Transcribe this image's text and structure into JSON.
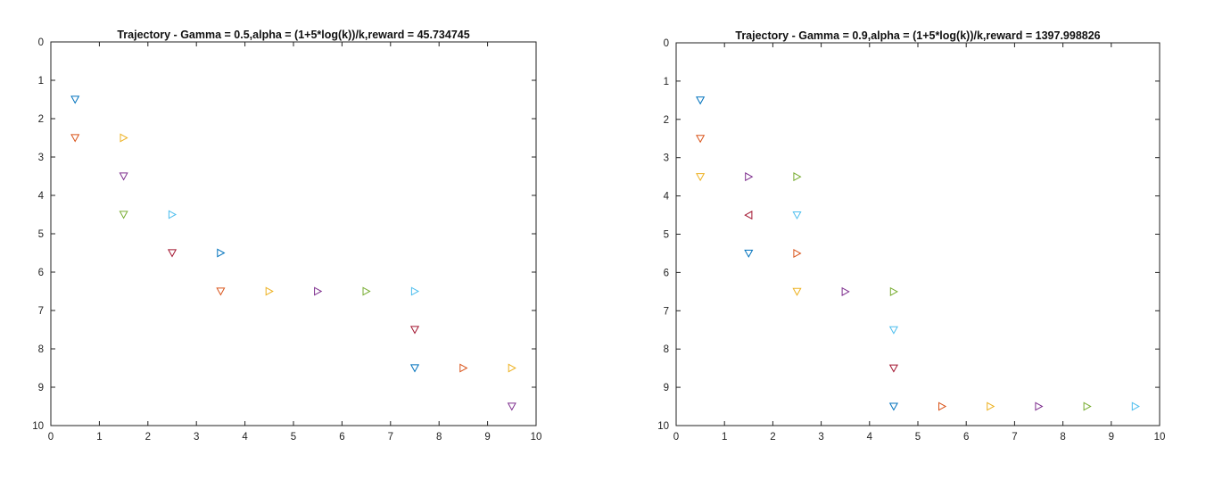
{
  "figure": {
    "panels": [
      "left-panel",
      "right-panel"
    ]
  },
  "palette": [
    "#0072BD",
    "#D95319",
    "#EDB120",
    "#7E2F8E",
    "#77AC30",
    "#4DBEEE",
    "#A2142F"
  ],
  "chart_data": [
    {
      "type": "scatter",
      "title": "Trajectory - Gamma = 0.5,alpha = (1+5*log(k))/k,reward = 45.734745",
      "xlabel": "",
      "ylabel": "",
      "xlim": [
        0,
        10
      ],
      "ylim": [
        0,
        10
      ],
      "y_reversed": true,
      "grid": true,
      "xticks": [
        "0",
        "1",
        "2",
        "3",
        "4",
        "5",
        "6",
        "7",
        "8",
        "9",
        "10"
      ],
      "yticks": [
        "0",
        "1",
        "2",
        "3",
        "4",
        "5",
        "6",
        "7",
        "8",
        "9",
        "10"
      ],
      "points": [
        {
          "x": 0.5,
          "y": 1.5,
          "marker": "down",
          "color": "#0072BD"
        },
        {
          "x": 0.5,
          "y": 2.5,
          "marker": "down",
          "color": "#D95319"
        },
        {
          "x": 1.5,
          "y": 2.5,
          "marker": "right",
          "color": "#EDB120"
        },
        {
          "x": 1.5,
          "y": 3.5,
          "marker": "down",
          "color": "#7E2F8E"
        },
        {
          "x": 1.5,
          "y": 4.5,
          "marker": "down",
          "color": "#77AC30"
        },
        {
          "x": 2.5,
          "y": 4.5,
          "marker": "right",
          "color": "#4DBEEE"
        },
        {
          "x": 2.5,
          "y": 5.5,
          "marker": "down",
          "color": "#A2142F"
        },
        {
          "x": 3.5,
          "y": 5.5,
          "marker": "right",
          "color": "#0072BD"
        },
        {
          "x": 3.5,
          "y": 6.5,
          "marker": "down",
          "color": "#D95319"
        },
        {
          "x": 4.5,
          "y": 6.5,
          "marker": "right",
          "color": "#EDB120"
        },
        {
          "x": 5.5,
          "y": 6.5,
          "marker": "right",
          "color": "#7E2F8E"
        },
        {
          "x": 6.5,
          "y": 6.5,
          "marker": "right",
          "color": "#77AC30"
        },
        {
          "x": 7.5,
          "y": 6.5,
          "marker": "right",
          "color": "#4DBEEE"
        },
        {
          "x": 7.5,
          "y": 7.5,
          "marker": "down",
          "color": "#A2142F"
        },
        {
          "x": 7.5,
          "y": 8.5,
          "marker": "down",
          "color": "#0072BD"
        },
        {
          "x": 8.5,
          "y": 8.5,
          "marker": "right",
          "color": "#D95319"
        },
        {
          "x": 9.5,
          "y": 8.5,
          "marker": "right",
          "color": "#EDB120"
        },
        {
          "x": 9.5,
          "y": 9.5,
          "marker": "down",
          "color": "#7E2F8E"
        }
      ]
    },
    {
      "type": "scatter",
      "title": "Trajectory - Gamma = 0.9,alpha = (1+5*log(k))/k,reward = 1397.998826",
      "xlabel": "",
      "ylabel": "",
      "xlim": [
        0,
        10
      ],
      "ylim": [
        0,
        10
      ],
      "y_reversed": true,
      "grid": true,
      "xticks": [
        "0",
        "1",
        "2",
        "3",
        "4",
        "5",
        "6",
        "7",
        "8",
        "9",
        "10"
      ],
      "yticks": [
        "0",
        "1",
        "2",
        "3",
        "4",
        "5",
        "6",
        "7",
        "8",
        "9",
        "10"
      ],
      "points": [
        {
          "x": 0.5,
          "y": 1.5,
          "marker": "down",
          "color": "#0072BD"
        },
        {
          "x": 0.5,
          "y": 2.5,
          "marker": "down",
          "color": "#D95319"
        },
        {
          "x": 0.5,
          "y": 3.5,
          "marker": "down",
          "color": "#EDB120"
        },
        {
          "x": 1.5,
          "y": 3.5,
          "marker": "right",
          "color": "#7E2F8E"
        },
        {
          "x": 2.5,
          "y": 3.5,
          "marker": "right",
          "color": "#77AC30"
        },
        {
          "x": 2.5,
          "y": 4.5,
          "marker": "down",
          "color": "#4DBEEE"
        },
        {
          "x": 1.5,
          "y": 4.5,
          "marker": "left",
          "color": "#A2142F"
        },
        {
          "x": 1.5,
          "y": 5.5,
          "marker": "down",
          "color": "#0072BD"
        },
        {
          "x": 2.5,
          "y": 5.5,
          "marker": "right",
          "color": "#D95319"
        },
        {
          "x": 2.5,
          "y": 6.5,
          "marker": "down",
          "color": "#EDB120"
        },
        {
          "x": 3.5,
          "y": 6.5,
          "marker": "right",
          "color": "#7E2F8E"
        },
        {
          "x": 4.5,
          "y": 6.5,
          "marker": "right",
          "color": "#77AC30"
        },
        {
          "x": 4.5,
          "y": 7.5,
          "marker": "down",
          "color": "#4DBEEE"
        },
        {
          "x": 4.5,
          "y": 8.5,
          "marker": "down",
          "color": "#A2142F"
        },
        {
          "x": 4.5,
          "y": 9.5,
          "marker": "down",
          "color": "#0072BD"
        },
        {
          "x": 5.5,
          "y": 9.5,
          "marker": "right",
          "color": "#D95319"
        },
        {
          "x": 6.5,
          "y": 9.5,
          "marker": "right",
          "color": "#EDB120"
        },
        {
          "x": 7.5,
          "y": 9.5,
          "marker": "right",
          "color": "#7E2F8E"
        },
        {
          "x": 8.5,
          "y": 9.5,
          "marker": "right",
          "color": "#77AC30"
        },
        {
          "x": 9.5,
          "y": 9.5,
          "marker": "right",
          "color": "#4DBEEE"
        }
      ]
    }
  ]
}
